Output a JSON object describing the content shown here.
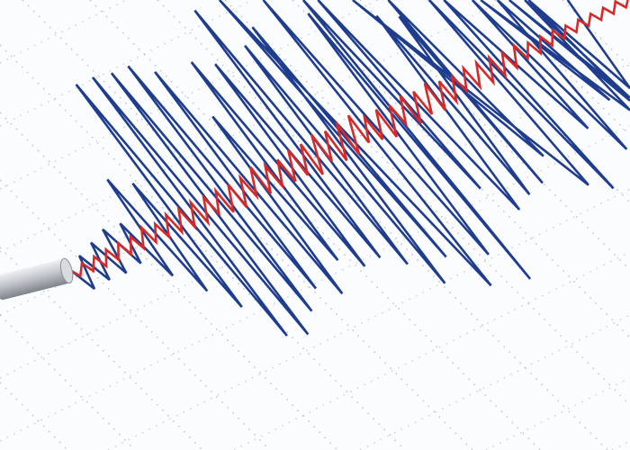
{
  "image": {
    "subject": "seismograph",
    "colors": {
      "background": "#fbfcfd",
      "grid_dots": "#9aa3b0",
      "waveform_primary": "#1f3d8f",
      "waveform_secondary": "#d42a2a",
      "stylus": "#b9bdc2"
    }
  }
}
